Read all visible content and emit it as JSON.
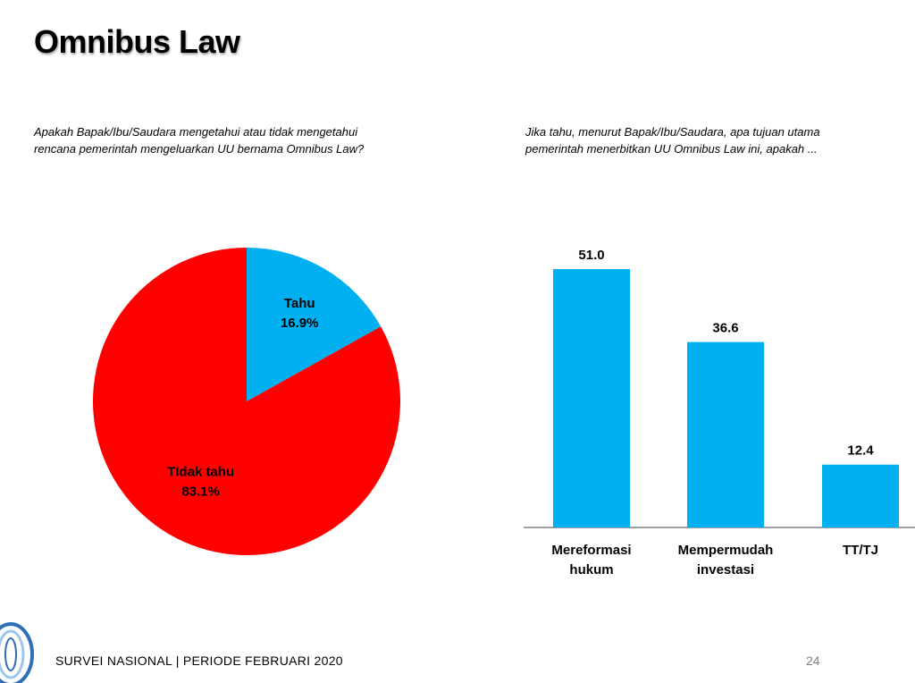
{
  "title": "Omnibus Law",
  "colors": {
    "red": "#ff0000",
    "blue": "#00b0f0",
    "axis": "#808080"
  },
  "questions": {
    "left": "Apakah Bapak/Ibu/Saudara mengetahui atau tidak mengetahui\nrencana pemerintah mengeluarkan UU bernama Omnibus Law?",
    "right": "Jika tahu, menurut Bapak/Ibu/Saudara, apa tujuan utama\npemerintah menerbitkan UU Omnibus Law ini, apakah ..."
  },
  "footer": {
    "text": "SURVEI NASIONAL | PERIODE FEBRUARI 2020",
    "page": "24"
  },
  "chart_data": [
    {
      "type": "pie",
      "slices": [
        {
          "label": "Tahu",
          "value": 16.9,
          "display": "16.9%",
          "color": "#00b0f0"
        },
        {
          "label": "TIdak tahu",
          "value": 83.1,
          "display": "83.1%",
          "color": "#ff0000"
        }
      ]
    },
    {
      "type": "bar",
      "categories": [
        [
          "Mereformasi",
          "hukum"
        ],
        [
          "Mempermudah",
          "investasi"
        ],
        [
          "TT/TJ"
        ]
      ],
      "values": [
        51.0,
        36.6,
        12.4
      ],
      "labels": [
        "51.0",
        "36.6",
        "12.4"
      ],
      "ylim": [
        0,
        51.0
      ],
      "color": "#00b0f0"
    }
  ]
}
